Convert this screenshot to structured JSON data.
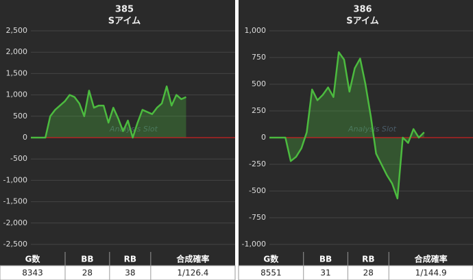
{
  "chart_data": [
    {
      "type": "area",
      "title": "385",
      "subtitle": "Sアイム",
      "watermark": "Analysis Slot",
      "color": "#4cbb3f",
      "zero_line_color": "#cc2222",
      "ylim": [
        -2500,
        2500
      ],
      "yticks": [
        {
          "value": 2500,
          "label": "2,500"
        },
        {
          "value": 2000,
          "label": "2,000"
        },
        {
          "value": 1500,
          "label": "1,500"
        },
        {
          "value": 1000,
          "label": "1,000"
        },
        500,
        0,
        -500,
        {
          "value": -1000,
          "label": "-1,000"
        },
        {
          "value": -1500,
          "label": "-1,500"
        },
        {
          "value": -2000,
          "label": "-2,000"
        },
        {
          "value": -2500,
          "label": "-2,500"
        }
      ],
      "values": [
        0,
        0,
        0,
        0,
        500,
        650,
        750,
        850,
        1000,
        950,
        800,
        500,
        1100,
        700,
        750,
        750,
        350,
        700,
        450,
        150,
        400,
        0,
        350,
        650,
        600,
        550,
        700,
        800,
        1200,
        750,
        1000,
        900,
        950
      ]
    },
    {
      "type": "area",
      "title": "386",
      "subtitle": "Sアイム",
      "watermark": "Analysis Slot",
      "color": "#4cbb3f",
      "zero_line_color": "#cc2222",
      "ylim": [
        -1000,
        1000
      ],
      "yticks": [
        {
          "value": 1000,
          "label": "1,000"
        },
        750,
        500,
        250,
        0,
        -250,
        -500,
        -750,
        {
          "value": -1000,
          "label": "-1,000"
        }
      ],
      "values": [
        0,
        0,
        0,
        0,
        -220,
        -180,
        -100,
        50,
        450,
        350,
        400,
        470,
        380,
        800,
        730,
        430,
        650,
        740,
        500,
        200,
        -150,
        -250,
        -350,
        -430,
        -570,
        0,
        -50,
        80,
        0,
        50
      ]
    }
  ],
  "tables": [
    {
      "header": [
        "G数",
        "BB",
        "RB",
        "合成確率"
      ],
      "row": [
        8343,
        28,
        38,
        "1/126.4"
      ]
    },
    {
      "header": [
        "G数",
        "BB",
        "RB",
        "合成確率"
      ],
      "row": [
        8551,
        31,
        28,
        "1/144.9"
      ]
    }
  ]
}
